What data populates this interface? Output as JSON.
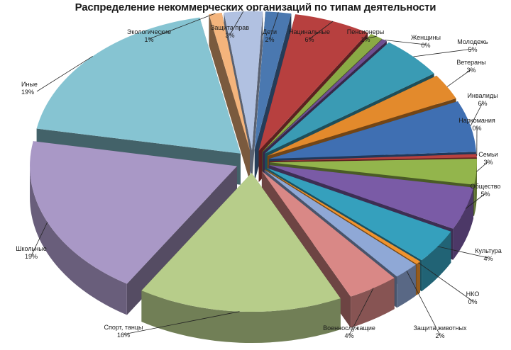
{
  "chart_data": {
    "type": "pie",
    "title": "Распределение некоммерческих организаций по типам деятельности",
    "slices": [
      {
        "label": "Дети",
        "value_label": "2%",
        "value": 2,
        "color": "#4a78b0"
      },
      {
        "label": "Нацинальные",
        "value_label": "6%",
        "value": 6,
        "color": "#b7403f"
      },
      {
        "label": "Пенсионеры",
        "value_label": "1%",
        "value": 1,
        "color": "#8aaa45"
      },
      {
        "label": "Женщины",
        "value_label": "0%",
        "value": 0.4,
        "color": "#6e4f92"
      },
      {
        "label": "Молодежь",
        "value_label": "5%",
        "value": 5,
        "color": "#3a9bb4"
      },
      {
        "label": "Ветераны",
        "value_label": "3%",
        "value": 3,
        "color": "#e38a2c"
      },
      {
        "label": "Инвалиды",
        "value_label": "6%",
        "value": 6,
        "color": "#3f6fb2"
      },
      {
        "label": "Наркомания",
        "value_label": "0%",
        "value": 0.4,
        "color": "#b94240"
      },
      {
        "label": "Семьи",
        "value_label": "3%",
        "value": 3,
        "color": "#93b54c"
      },
      {
        "label": "Общество",
        "value_label": "5%",
        "value": 5,
        "color": "#7a5ba6"
      },
      {
        "label": "Культура",
        "value_label": "4%",
        "value": 4,
        "color": "#35a0bd"
      },
      {
        "label": "НКО",
        "value_label": "0%",
        "value": 0.4,
        "color": "#f0932e"
      },
      {
        "label": "Защита животных",
        "value_label": "2%",
        "value": 2,
        "color": "#8fa8d6"
      },
      {
        "label": "Военнослужащие",
        "value_label": "4%",
        "value": 4,
        "color": "#d98886"
      },
      {
        "label": "Спорт, танцы",
        "value_label": "16%",
        "value": 16,
        "color": "#b7cd8a"
      },
      {
        "label": "Школьные",
        "value_label": "19%",
        "value": 19,
        "color": "#a998c6"
      },
      {
        "label": "Иные",
        "value_label": "19%",
        "value": 19,
        "color": "#86c4d2"
      },
      {
        "label": "Экологические",
        "value_label": "1%",
        "value": 1,
        "color": "#f4b47c"
      },
      {
        "label": "Защита прав",
        "value_label": "3%",
        "value": 3,
        "color": "#b1c1e1"
      }
    ]
  }
}
